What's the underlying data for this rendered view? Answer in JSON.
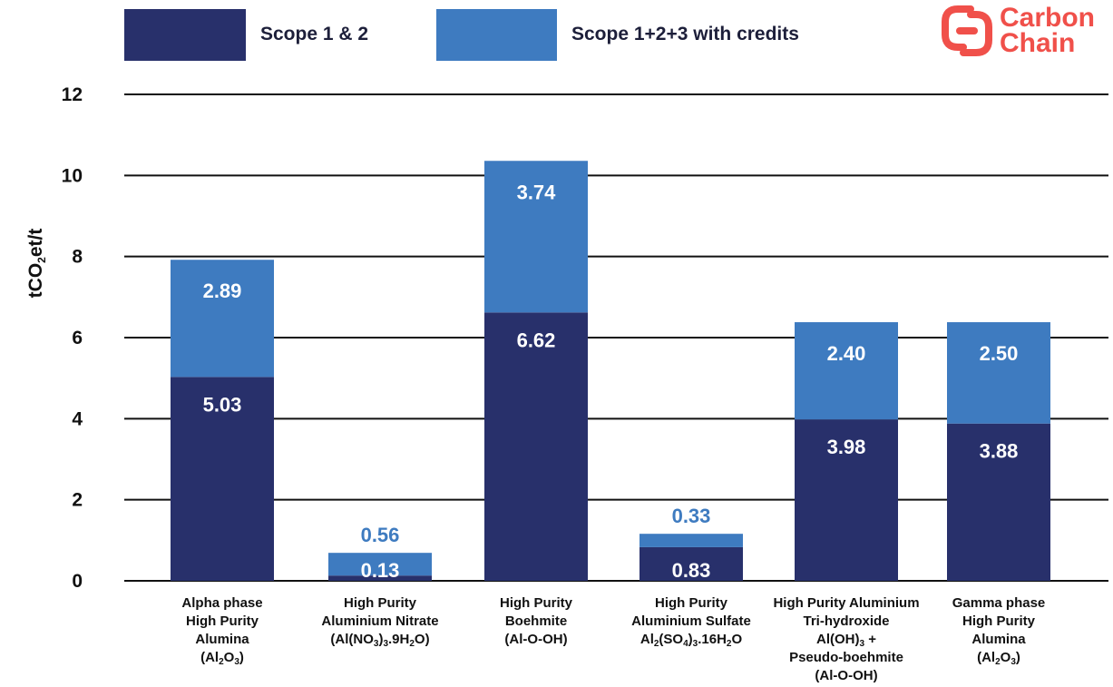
{
  "logo": {
    "icon": "carbon-chain-logo-icon",
    "line1": "Carbon",
    "line2": "Chain",
    "color": "#f0504a"
  },
  "legend": [
    {
      "label": "Scope 1 & 2",
      "color": "#28306b"
    },
    {
      "label": "Scope 1+2+3 with credits",
      "color": "#3e7bc0"
    }
  ],
  "chart_data": {
    "type": "bar",
    "stacked": true,
    "title": "",
    "xlabel": "",
    "ylabel": {
      "main": "tCO",
      "sub": "2",
      "rest": "et/t"
    },
    "ylim": [
      0,
      12
    ],
    "yticks": [
      0,
      2,
      4,
      6,
      8,
      10,
      12
    ],
    "grid": true,
    "legend_position": "top",
    "categories": [
      "Alpha phase High Purity Alumina (Al2O3)",
      "High Purity Aluminium Nitrate (Al(NO3)3.9H2O)",
      "High Purity Boehmite (Al-O-OH)",
      "High Purity Aluminium Sulfate Al2(SO4)3.16H2O",
      "High Purity Aluminium Tri-hydroxide Al(OH)3 + Pseudo-boehmite (Al-O-OH)",
      "Gamma phase High Purity Alumina (Al2O3)"
    ],
    "category_lines": [
      [
        [
          [
            "Alpha phase",
            ""
          ]
        ],
        [
          [
            "High Purity",
            ""
          ]
        ],
        [
          [
            "Alumina",
            ""
          ]
        ],
        [
          [
            "(Al",
            "2"
          ],
          [
            "O",
            "3"
          ],
          [
            ")",
            ""
          ]
        ]
      ],
      [
        [
          [
            "High Purity",
            ""
          ]
        ],
        [
          [
            "Aluminium Nitrate",
            ""
          ]
        ],
        [
          [
            "(Al(NO",
            "3"
          ],
          [
            ")",
            "3"
          ],
          [
            ".9H",
            "2"
          ],
          [
            "O)",
            ""
          ]
        ]
      ],
      [
        [
          [
            "High Purity",
            ""
          ]
        ],
        [
          [
            "Boehmite",
            ""
          ]
        ],
        [
          [
            "(Al-O-OH)",
            ""
          ]
        ]
      ],
      [
        [
          [
            "High Purity",
            ""
          ]
        ],
        [
          [
            "Aluminium Sulfate",
            ""
          ]
        ],
        [
          [
            "Al",
            "2"
          ],
          [
            "(SO",
            "4"
          ],
          [
            ")",
            "3"
          ],
          [
            ".16H",
            "2"
          ],
          [
            "O",
            ""
          ]
        ]
      ],
      [
        [
          [
            "High Purity Aluminium",
            ""
          ]
        ],
        [
          [
            "Tri-hydroxide",
            ""
          ]
        ],
        [
          [
            "Al(OH)",
            "3"
          ],
          [
            " +",
            ""
          ]
        ],
        [
          [
            "Pseudo-boehmite",
            ""
          ]
        ],
        [
          [
            "(Al-O-OH)",
            ""
          ]
        ]
      ],
      [
        [
          [
            "Gamma phase",
            ""
          ]
        ],
        [
          [
            "High Purity",
            ""
          ]
        ],
        [
          [
            "Alumina",
            ""
          ]
        ],
        [
          [
            "(Al",
            "2"
          ],
          [
            "O",
            "3"
          ],
          [
            ")",
            ""
          ]
        ]
      ]
    ],
    "series": [
      {
        "name": "Scope 1 & 2",
        "color": "#28306b",
        "values": [
          5.03,
          0.13,
          6.62,
          0.83,
          3.98,
          3.88
        ],
        "labels": [
          "5.03",
          "0.13",
          "6.62",
          "0.83",
          "3.98",
          "3.88"
        ]
      },
      {
        "name": "Scope 1+2+3 with credits",
        "color": "#3e7bc0",
        "values": [
          2.89,
          0.56,
          3.74,
          0.33,
          2.4,
          2.5
        ],
        "labels": [
          "2.89",
          "0.56",
          "3.74",
          "0.33",
          "2.40",
          "2.50"
        ]
      }
    ]
  }
}
